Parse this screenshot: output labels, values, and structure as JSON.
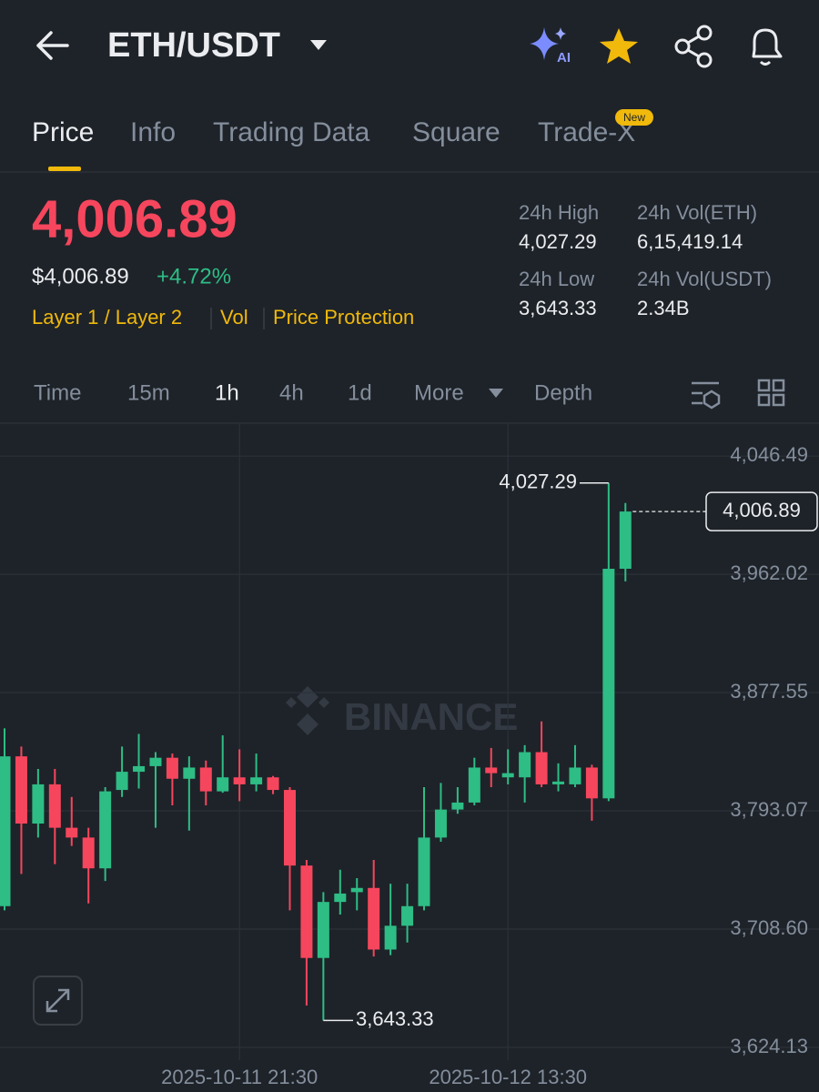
{
  "header": {
    "title": "ETH/USDT",
    "ai_badge": "AI"
  },
  "tabs": [
    "Price",
    "Info",
    "Trading Data",
    "Square",
    "Trade-X"
  ],
  "new_badge": "New",
  "price": {
    "last": "4,006.89",
    "usd": "$4,006.89",
    "change": "+4.72%",
    "tags": [
      "Layer 1 / Layer 2",
      "Vol",
      "Price Protection"
    ]
  },
  "stats": [
    {
      "label": "24h High",
      "value": "4,027.29"
    },
    {
      "label": "24h Vol(ETH)",
      "value": "6,15,419.14"
    },
    {
      "label": "24h Low",
      "value": "3,643.33"
    },
    {
      "label": "24h Vol(USDT)",
      "value": "2.34B"
    }
  ],
  "intervals": [
    "Time",
    "15m",
    "1h",
    "4h",
    "1d",
    "More",
    "Depth"
  ],
  "chart_data": {
    "type": "candlestick",
    "watermark": "BINANCE",
    "up_color": "#2ebd85",
    "down_color": "#f6465d",
    "x": [
      "2025-10-11 07:30",
      "2025-10-11 08:30",
      "2025-10-11 09:30",
      "2025-10-11 10:30",
      "2025-10-11 11:30",
      "2025-10-11 12:30",
      "2025-10-11 13:30",
      "2025-10-11 14:30",
      "2025-10-11 15:30",
      "2025-10-11 16:30",
      "2025-10-11 17:30",
      "2025-10-11 18:30",
      "2025-10-11 19:30",
      "2025-10-11 20:30",
      "2025-10-11 21:30",
      "2025-10-11 22:30",
      "2025-10-11 23:30",
      "2025-10-12 00:30",
      "2025-10-12 01:30",
      "2025-10-12 02:30",
      "2025-10-12 03:30",
      "2025-10-12 04:30",
      "2025-10-12 05:30",
      "2025-10-12 06:30",
      "2025-10-12 07:30",
      "2025-10-12 08:30",
      "2025-10-12 09:30",
      "2025-10-12 10:30",
      "2025-10-12 11:30",
      "2025-10-12 12:30",
      "2025-10-12 13:30",
      "2025-10-12 14:30",
      "2025-10-12 15:30",
      "2025-10-12 16:30",
      "2025-10-12 17:30",
      "2025-10-12 18:30",
      "2025-10-12 19:30",
      "2025-10-12 20:30"
    ],
    "open": [
      3725,
      3832,
      3784,
      3812,
      3781,
      3774,
      3752,
      3808,
      3821,
      3825,
      3831,
      3816,
      3824,
      3807,
      3817,
      3812,
      3817,
      3808,
      3754,
      3688,
      3728,
      3735,
      3738,
      3694,
      3711,
      3725,
      3774,
      3794,
      3799,
      3824,
      3817,
      3817,
      3835,
      3812,
      3812,
      3824,
      3802,
      3966
    ],
    "high": [
      3852,
      3839,
      3823,
      3823,
      3803,
      3781,
      3810,
      3839,
      3848,
      3835,
      3834,
      3832,
      3829,
      3847,
      3837,
      3834,
      3818,
      3810,
      3758,
      3735,
      3751,
      3745,
      3758,
      3741,
      3741,
      3810,
      3813,
      3810,
      3831,
      3838,
      3837,
      3840,
      3857,
      3827,
      3840,
      3826,
      4027.29,
      4013
    ],
    "low": [
      3722,
      3748,
      3774,
      3755,
      3768,
      3727,
      3743,
      3803,
      3809,
      3781,
      3797,
      3779,
      3797,
      3806,
      3800,
      3807,
      3805,
      3722,
      3654,
      3643.33,
      3719,
      3722,
      3689,
      3690,
      3699,
      3722,
      3771,
      3791,
      3797,
      3810,
      3812,
      3799,
      3810,
      3807,
      3810,
      3786,
      3800,
      3957
    ],
    "close": [
      3832,
      3784,
      3812,
      3781,
      3774,
      3752,
      3807,
      3821,
      3825,
      3831,
      3816,
      3824,
      3807,
      3817,
      3812,
      3817,
      3808,
      3754,
      3688,
      3728,
      3734,
      3738,
      3694,
      3711,
      3725,
      3774,
      3794,
      3799,
      3824,
      3820,
      3820,
      3835,
      3812,
      3814,
      3824,
      3802,
      3966,
      4006.89
    ],
    "ylim": [
      3615,
      4070
    ],
    "yticks": [
      {
        "value": 4046.49,
        "label": "4,046.49"
      },
      {
        "value": 3962.02,
        "label": "3,962.02"
      },
      {
        "value": 3877.55,
        "label": "3,877.55"
      },
      {
        "value": 3793.07,
        "label": "3,793.07"
      },
      {
        "value": 3708.6,
        "label": "3,708.60"
      },
      {
        "value": 3624.13,
        "label": "3,624.13"
      }
    ],
    "xticks": [
      "2025-10-11 21:30",
      "2025-10-12 13:30"
    ],
    "high_marker": {
      "value": 4027.29,
      "label": "4,027.29"
    },
    "low_marker": {
      "value": 3643.33,
      "label": "3,643.33"
    },
    "last_price": {
      "value": 4006.89,
      "label": "4,006.89"
    }
  }
}
